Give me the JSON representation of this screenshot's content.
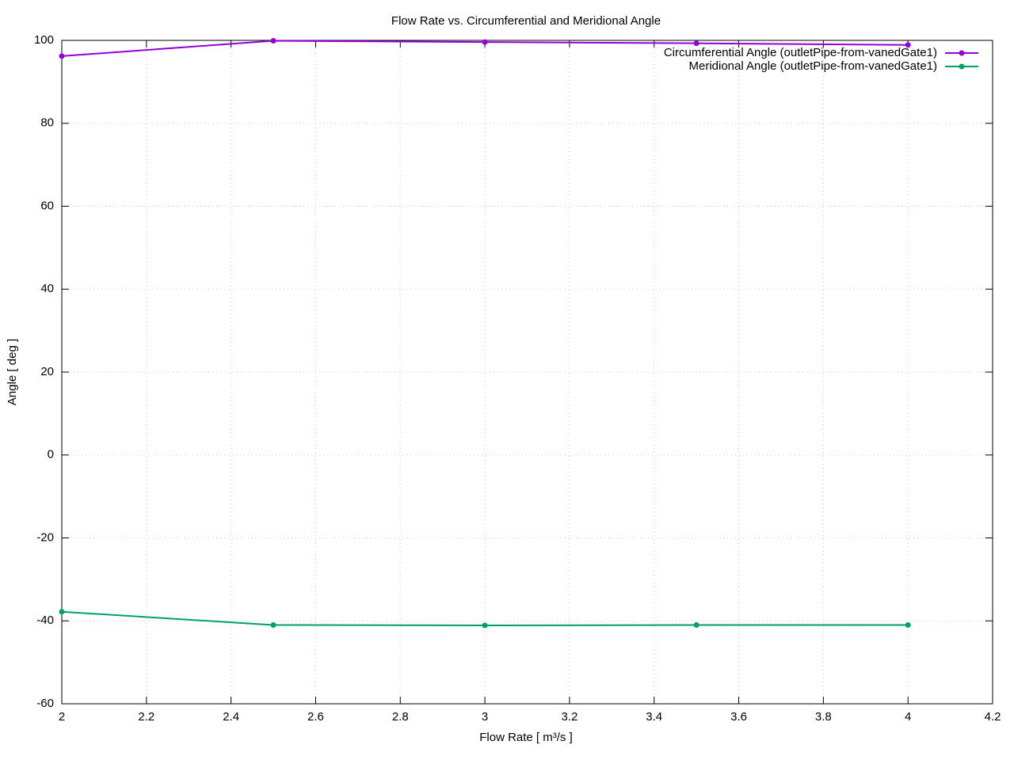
{
  "chart_data": {
    "type": "line",
    "title": "Flow Rate vs. Circumferential and Meridional Angle",
    "x_label": "Flow Rate [ m³/s ]",
    "y_label": "Angle [ deg ]",
    "x": [
      2,
      2.5,
      3,
      3.5,
      4
    ],
    "series": [
      {
        "name": "Circumferential Angle (outletPipe-from-vanedGate1)",
        "color": "#9400d3",
        "values": [
          96.2,
          99.9,
          99.6,
          99.3,
          98.9
        ]
      },
      {
        "name": "Meridional Angle (outletPipe-from-vanedGate1)",
        "color": "#009e73",
        "values": [
          -37.8,
          -41.0,
          -41.1,
          -41.0,
          -41.0
        ]
      }
    ],
    "xlim": [
      2,
      4.2
    ],
    "xticks": [
      2,
      2.2,
      2.4,
      2.6,
      2.8,
      3,
      3.2,
      3.4,
      3.6,
      3.8,
      4,
      4.2
    ],
    "ylim": [
      -60,
      100
    ],
    "yticks": [
      -60,
      -40,
      -20,
      0,
      20,
      40,
      60,
      80,
      100
    ],
    "grid": true,
    "legend": "top right"
  }
}
